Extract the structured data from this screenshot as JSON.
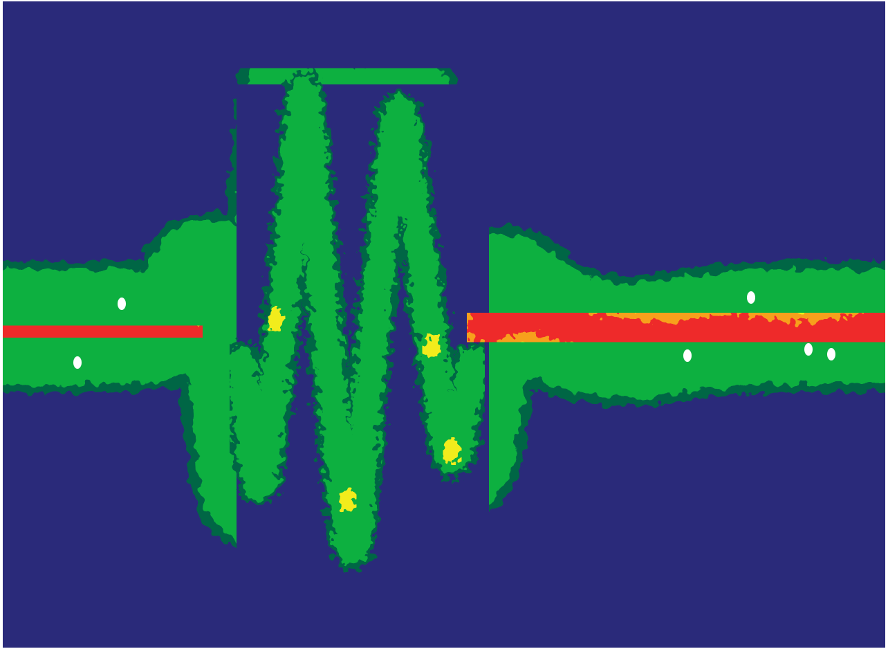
{
  "image": {
    "kind": "heatmap-waveform",
    "colors": {
      "background": "#2a2a7a",
      "outline": "#006644",
      "green": "#10b040",
      "yellow": "#f2ec1c",
      "orange": "#f7a01a",
      "red": "#ee2a2a",
      "white": "#ffffff"
    },
    "colormap": [
      "#2a2a7a",
      "#006644",
      "#10b040",
      "#f2ec1c",
      "#f7a01a",
      "#ee2a2a",
      "#ffffff"
    ]
  }
}
